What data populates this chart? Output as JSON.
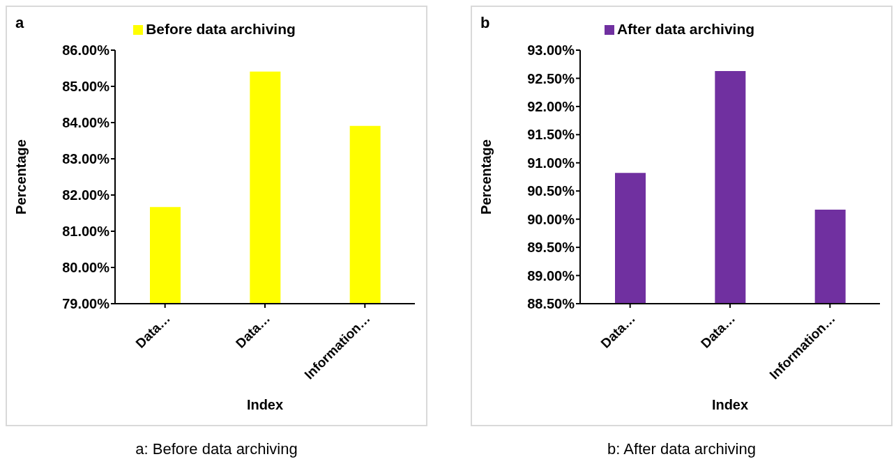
{
  "chart_data": [
    {
      "type": "bar",
      "title": "a",
      "xlabel": "Index",
      "ylabel": "Percentage",
      "categories": [
        "Data…",
        "Data…",
        "Information…"
      ],
      "series": [
        {
          "name": "Before data archiving",
          "color": "#ffff00",
          "values": [
            81.67,
            85.41,
            83.91
          ]
        }
      ],
      "ylim": [
        79,
        86
      ],
      "yticks": [
        {
          "value": 79,
          "label": "79.00%"
        },
        {
          "value": 80,
          "label": "80.00%"
        },
        {
          "value": 81,
          "label": "81.00%"
        },
        {
          "value": 82,
          "label": "82.00%"
        },
        {
          "value": 83,
          "label": "83.00%"
        },
        {
          "value": 84,
          "label": "84.00%"
        },
        {
          "value": 85,
          "label": "85.00%"
        },
        {
          "value": 86,
          "label": "86.00%"
        }
      ],
      "grid": false,
      "legend": "top",
      "annotations": [
        "a: Before data archiving"
      ]
    },
    {
      "type": "bar",
      "title": "b",
      "xlabel": "Index",
      "ylabel": "Percentage",
      "categories": [
        "Data…",
        "Data…",
        "Information…"
      ],
      "series": [
        {
          "name": "After data archiving",
          "color": "#7030a0",
          "values": [
            90.82,
            92.63,
            90.17
          ]
        }
      ],
      "ylim": [
        88.5,
        93
      ],
      "yticks": [
        {
          "value": 88.5,
          "label": "88.50%"
        },
        {
          "value": 89,
          "label": "89.00%"
        },
        {
          "value": 89.5,
          "label": "89.50%"
        },
        {
          "value": 90,
          "label": "90.00%"
        },
        {
          "value": 90.5,
          "label": "90.50%"
        },
        {
          "value": 91,
          "label": "91.00%"
        },
        {
          "value": 91.5,
          "label": "91.50%"
        },
        {
          "value": 92,
          "label": "92.00%"
        },
        {
          "value": 92.5,
          "label": "92.50%"
        },
        {
          "value": 93,
          "label": "93.00%"
        }
      ],
      "grid": false,
      "legend": "top",
      "annotations": [
        "b: After data archiving"
      ]
    }
  ]
}
